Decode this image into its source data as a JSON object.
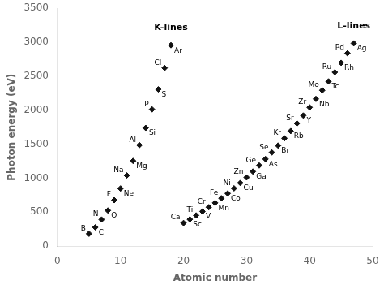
{
  "chart_data": {
    "type": "scatter",
    "xlabel": "Atomic number",
    "ylabel": "Photon energy (eV)",
    "xlim": [
      0,
      50
    ],
    "ylim": [
      0,
      3500
    ],
    "xticks": [
      0,
      10,
      20,
      30,
      40,
      50
    ],
    "yticks": [
      0,
      500,
      1000,
      1500,
      2000,
      2500,
      3000,
      3500
    ],
    "grid": false,
    "series": [
      {
        "name": "K-lines",
        "color": "#111111",
        "marker": "diamond",
        "point_labels": [
          "B",
          "C",
          "N",
          "O",
          "F",
          "Ne",
          "Na",
          "Mg",
          "Al",
          "Si",
          "P",
          "S",
          "Cl",
          "Ar"
        ],
        "x": [
          5,
          6,
          7,
          8,
          9,
          10,
          11,
          12,
          13,
          14,
          15,
          16,
          17,
          18
        ],
        "values": [
          183,
          277,
          392,
          525,
          677,
          849,
          1041,
          1254,
          1487,
          1740,
          2013,
          2307,
          2622,
          2957
        ]
      },
      {
        "name": "L-lines",
        "color": "#111111",
        "marker": "diamond",
        "point_labels": [
          "Ca",
          "Sc",
          "Ti",
          "V",
          "Cr",
          "Mn",
          "Fe",
          "Co",
          "Ni",
          "Cu",
          "Zn",
          "Ga",
          "Ge",
          "As",
          "Se",
          "Br",
          "Kr",
          "Rb",
          "Sr",
          "Y",
          "Zr",
          "Nb",
          "Mo",
          "Tc",
          "Ru",
          "Rh",
          "Pd",
          "Ag"
        ],
        "x": [
          20,
          21,
          22,
          23,
          24,
          25,
          26,
          27,
          28,
          29,
          30,
          31,
          32,
          33,
          34,
          35,
          36,
          37,
          38,
          39,
          40,
          41,
          42,
          43,
          44,
          45,
          46,
          47
        ],
        "values": [
          341,
          395,
          452,
          511,
          573,
          637,
          705,
          776,
          851,
          930,
          1012,
          1098,
          1188,
          1282,
          1379,
          1480,
          1587,
          1694,
          1806,
          1922,
          2042,
          2166,
          2293,
          2424,
          2559,
          2697,
          2838,
          2984
        ]
      }
    ]
  }
}
